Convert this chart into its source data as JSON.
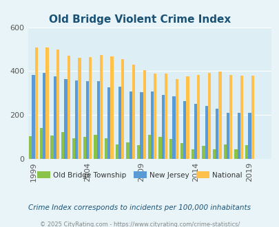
{
  "title": "Old Bridge Violent Crime Index",
  "title_color": "#1a5276",
  "years": [
    1999,
    2000,
    2001,
    2002,
    2003,
    2004,
    2005,
    2006,
    2007,
    2008,
    2009,
    2010,
    2011,
    2012,
    2013,
    2014,
    2015,
    2016,
    2017,
    2018,
    2019,
    2020
  ],
  "old_bridge": [
    105,
    140,
    108,
    122,
    95,
    100,
    110,
    95,
    65,
    75,
    62,
    110,
    100,
    92,
    72,
    45,
    60,
    45,
    65,
    45,
    62,
    null
  ],
  "new_jersey": [
    382,
    393,
    375,
    363,
    356,
    355,
    354,
    326,
    328,
    308,
    305,
    308,
    290,
    285,
    263,
    252,
    242,
    229,
    210,
    210,
    210,
    null
  ],
  "national": [
    507,
    507,
    497,
    470,
    460,
    465,
    473,
    468,
    455,
    430,
    405,
    390,
    388,
    365,
    375,
    383,
    393,
    398,
    383,
    378,
    378,
    null
  ],
  "xlim_min": 1998.5,
  "xlim_max": 2021.0,
  "ylim": [
    0,
    600
  ],
  "yticks": [
    0,
    200,
    400,
    600
  ],
  "xtick_years": [
    1999,
    2004,
    2009,
    2014,
    2019
  ],
  "bar_width": 0.27,
  "old_bridge_color": "#8bc34a",
  "nj_color": "#5b9bd5",
  "national_color": "#ffc04c",
  "bg_color": "#e8f4f8",
  "plot_bg": "#ddeef5",
  "grid_color": "#ffffff",
  "legend_labels": [
    "Old Bridge Township",
    "New Jersey",
    "National"
  ],
  "subtitle": "Crime Index corresponds to incidents per 100,000 inhabitants",
  "subtitle_color": "#1a5276",
  "footer": "© 2025 CityRating.com - https://www.cityrating.com/crime-statistics/",
  "footer_color": "#888888"
}
